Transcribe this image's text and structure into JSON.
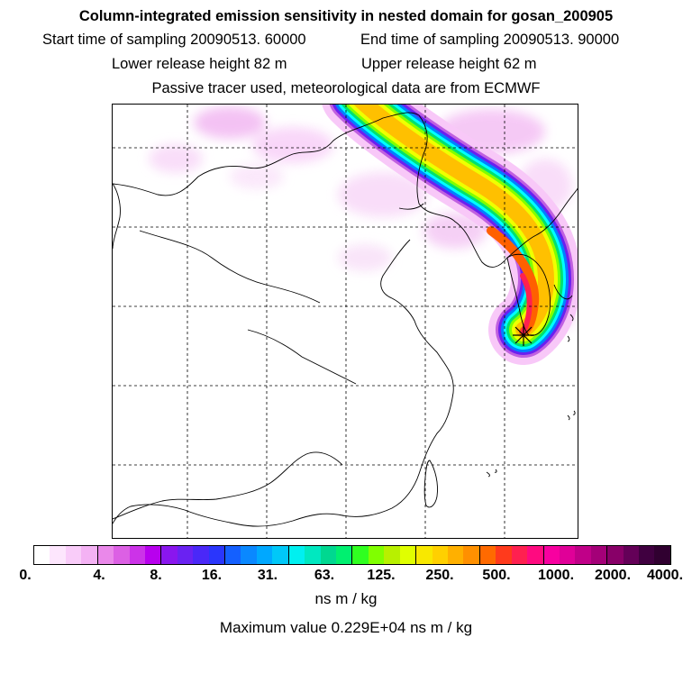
{
  "header": {
    "title": "Column-integrated emission sensitivity in nested domain for gosan_200905",
    "start_label": "Start time of sampling 20090513. 60000",
    "end_label": "End time of sampling 20090513. 90000",
    "lower_label": "Lower release height   82 m",
    "upper_label": "Upper release height   62 m",
    "tracer_line": "Passive tracer used, meteorological data are from ECMWF"
  },
  "map": {
    "release_site_icon": "star-marker-icon",
    "plume_colors": [
      "#f8c8f8",
      "#c060e0",
      "#6a20f0",
      "#0080ff",
      "#00ffff",
      "#00e070",
      "#80ff00",
      "#f0ff00",
      "#ffc000",
      "#ff6000"
    ]
  },
  "legend": {
    "colors": [
      "#ffffff",
      "#fde6fd",
      "#f9ccf9",
      "#f4b2f4",
      "#ea88ea",
      "#dc60e4",
      "#cc33e8",
      "#b800ee",
      "#8a16ee",
      "#6a22f2",
      "#4a28f8",
      "#2a36fc",
      "#1460ff",
      "#0a88ff",
      "#00a8ff",
      "#00c8f8",
      "#00f0f0",
      "#00e8c0",
      "#00d890",
      "#00f070",
      "#30ff20",
      "#80ff00",
      "#b8f000",
      "#e0ff00",
      "#f8e800",
      "#ffd000",
      "#ffb000",
      "#ff9000",
      "#ff6a00",
      "#ff3a1c",
      "#ff2050",
      "#ff0a80",
      "#f800a0",
      "#e00098",
      "#c00088",
      "#a40078",
      "#880068",
      "#640058",
      "#400040",
      "#300030"
    ],
    "ticks": [
      "0.",
      "4.",
      "8.",
      "16.",
      "31.",
      "63.",
      "125.",
      "250.",
      "500.",
      "1000.",
      "2000.",
      "4000."
    ],
    "units": "ns m / kg",
    "max_value_line": "Maximum value  0.229E+04 ns m / kg"
  }
}
